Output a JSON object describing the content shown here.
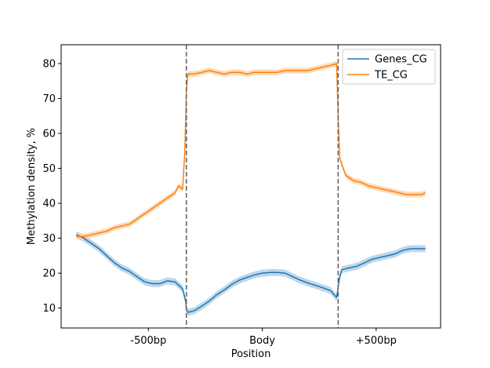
{
  "chart_data": {
    "type": "line",
    "title": "",
    "xlabel": "Position",
    "ylabel": "Methylation density, %",
    "xlim": [
      -1.65,
      3.35
    ],
    "ylim": [
      4.3,
      85.4
    ],
    "x_ticks": [
      {
        "value": -0.5,
        "label": "-500bp"
      },
      {
        "value": 1.0,
        "label": "Body"
      },
      {
        "value": 2.5,
        "label": "+500bp"
      }
    ],
    "y_ticks": [
      10,
      20,
      30,
      40,
      50,
      60,
      70,
      80
    ],
    "vlines": [
      0,
      2
    ],
    "grid": false,
    "legend": {
      "position": "top-right"
    },
    "series": [
      {
        "name": "Genes_CG",
        "color": "#1f77b4",
        "band_color": "#aecde6",
        "x": [
          -1.45,
          -1.35,
          -1.25,
          -1.15,
          -1.05,
          -0.95,
          -0.85,
          -0.75,
          -0.65,
          -0.55,
          -0.45,
          -0.35,
          -0.25,
          -0.15,
          -0.05,
          -0.01,
          0.0,
          0.02,
          0.1,
          0.2,
          0.3,
          0.4,
          0.5,
          0.6,
          0.7,
          0.8,
          0.9,
          1.0,
          1.1,
          1.2,
          1.3,
          1.4,
          1.5,
          1.6,
          1.7,
          1.8,
          1.9,
          1.98,
          2.0,
          2.02,
          2.05,
          2.15,
          2.25,
          2.35,
          2.45,
          2.55,
          2.65,
          2.75,
          2.85,
          2.95,
          3.05,
          3.15
        ],
        "y": [
          31.0,
          30.0,
          28.5,
          27.0,
          25.0,
          23.0,
          21.5,
          20.5,
          19.0,
          17.5,
          17.0,
          17.0,
          17.8,
          17.5,
          15.5,
          12.0,
          9.5,
          8.8,
          9.2,
          10.5,
          12.0,
          13.8,
          15.2,
          16.8,
          18.0,
          18.8,
          19.5,
          20.0,
          20.2,
          20.2,
          20.0,
          19.0,
          18.0,
          17.2,
          16.5,
          15.8,
          15.0,
          13.0,
          16.0,
          19.0,
          21.0,
          21.5,
          22.0,
          23.0,
          24.0,
          24.5,
          25.0,
          25.5,
          26.5,
          27.0,
          27.0,
          27.0
        ],
        "ci_halfwidth": 1.0
      },
      {
        "name": "TE_CG",
        "color": "#ff7f0e",
        "band_color": "#ffcfa3",
        "x": [
          -1.45,
          -1.35,
          -1.25,
          -1.15,
          -1.05,
          -0.95,
          -0.85,
          -0.75,
          -0.65,
          -0.55,
          -0.45,
          -0.35,
          -0.25,
          -0.15,
          -0.1,
          -0.05,
          -0.02,
          0.0,
          0.02,
          0.1,
          0.2,
          0.3,
          0.4,
          0.5,
          0.6,
          0.7,
          0.8,
          0.9,
          1.0,
          1.1,
          1.2,
          1.3,
          1.4,
          1.5,
          1.6,
          1.7,
          1.8,
          1.9,
          1.98,
          2.0,
          2.02,
          2.05,
          2.1,
          2.2,
          2.3,
          2.4,
          2.5,
          2.6,
          2.7,
          2.8,
          2.9,
          3.0,
          3.1,
          3.15
        ],
        "y": [
          30.5,
          30.5,
          31.0,
          31.5,
          32.0,
          33.0,
          33.5,
          34.0,
          35.5,
          37.0,
          38.5,
          40.0,
          41.5,
          43.0,
          45.0,
          44.0,
          55.0,
          72.0,
          77.0,
          77.0,
          77.5,
          78.0,
          77.5,
          77.0,
          77.5,
          77.5,
          77.0,
          77.5,
          77.5,
          77.5,
          77.5,
          78.0,
          78.0,
          78.0,
          78.0,
          78.5,
          79.0,
          79.5,
          80.0,
          65.0,
          53.0,
          51.0,
          48.0,
          46.5,
          46.0,
          45.0,
          44.5,
          44.0,
          43.5,
          43.0,
          42.5,
          42.5,
          42.5,
          43.0
        ],
        "ci_halfwidth": 0.8
      }
    ]
  }
}
